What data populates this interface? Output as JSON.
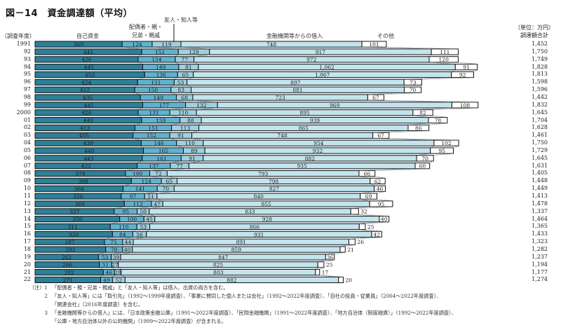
{
  "title": "図－14　資金調達額（平均）",
  "headers": {
    "year": "（調査年度）",
    "self": "自己資金",
    "family_line1": "配偶者・親・",
    "family_line2": "兄弟・親戚",
    "friends": "友人・知人等",
    "bank": "金融機関等からの借入",
    "other": "その他",
    "unit": "（単位：万円）",
    "total": "調達額合計"
  },
  "colors": {
    "self": "#2e7f98",
    "family": "#5fb2cf",
    "friends": "#9fd0e0",
    "bank": "#c2e4ee",
    "other": "#ffffff",
    "border": "#111111"
  },
  "chart_data": {
    "type": "bar",
    "orientation": "horizontal-stacked",
    "title": "図－14　資金調達額（平均）",
    "unit": "万円",
    "categories": [
      "1991",
      "92",
      "93",
      "94",
      "95",
      "96",
      "97",
      "98",
      "99",
      "2000",
      "01",
      "02",
      "03",
      "04",
      "05",
      "06",
      "07",
      "08",
      "09",
      "10",
      "11",
      "12",
      "13",
      "14",
      "15",
      "16",
      "17",
      "18",
      "19",
      "20",
      "21",
      "22"
    ],
    "series": [
      {
        "name": "自己資金",
        "values": [
          360,
          441,
          426,
          445,
          453,
          424,
          412,
          435,
          445,
          426,
          440,
          413,
          405,
          439,
          448,
          443,
          422,
          374,
          398,
          364,
          356,
          369,
          327,
          350,
          311,
          320,
          287,
          292,
          262,
          266,
          282,
          271
        ]
      },
      {
        "name": "配偶者・親・兄弟・親戚",
        "values": [
          124,
          151,
          154,
          149,
          136,
          151,
          150,
          149,
          177,
          131,
          159,
          151,
          152,
          146,
          165,
          161,
          137,
          100,
          124,
          141,
          97,
          112,
          95,
          100,
          110,
          84,
          75,
          70,
          53,
          51,
          46,
          49
        ]
      },
      {
        "name": "友人・知人等",
        "values": [
          119,
          129,
          77,
          81,
          65,
          53,
          83,
          68,
          132,
          110,
          88,
          113,
          91,
          110,
          89,
          91,
          77,
          72,
          65,
          70,
          51,
          47,
          50,
          45,
          53,
          56,
          44,
          40,
          39,
          27,
          28,
          52
        ]
      },
      {
        "name": "金融機関等からの借入",
        "values": [
          748,
          917,
          972,
          1062,
          1067,
          897,
          881,
          723,
          969,
          895,
          939,
          865,
          748,
          954,
          932,
          882,
          935,
          793,
          798,
          827,
          840,
          855,
          833,
          928,
          866,
          931,
          891,
          859,
          847,
          825,
          803,
          882
        ]
      },
      {
        "name": "その他",
        "values": [
          101,
          111,
          120,
          91,
          92,
          73,
          70,
          67,
          108,
          82,
          78,
          86,
          67,
          102,
          95,
          70,
          60,
          66,
          62,
          46,
          69,
          95,
          32,
          40,
          25,
          42,
          26,
          21,
          36,
          25,
          17,
          20
        ]
      }
    ],
    "totals": [
      "1,452",
      "1,750",
      "1,749",
      "1,828",
      "1,813",
      "1,598",
      "1,596",
      "1,442",
      "1,832",
      "1,645",
      "1,704",
      "1,628",
      "1,461",
      "1,750",
      "1,729",
      "1,645",
      "1,631",
      "1,405",
      "1,448",
      "1,449",
      "1,413",
      "1,478",
      "1,337",
      "1,464",
      "1,365",
      "1,433",
      "1,323",
      "1,282",
      "1,237",
      "1,194",
      "1,177",
      "1,274"
    ],
    "xlabel": "",
    "ylabel": "調査年度",
    "legend": "top (column headers)",
    "grid": false
  },
  "notes": [
    {
      "num": "（注）1",
      "text": "「配偶者・親・兄弟・親戚」と「友人・知人等」は借入、出資の両方を含む。"
    },
    {
      "num": "2",
      "text": "「友人・知人等」には「取引先」（1992～1999年度調査）、「事業に賛同した個人または会社」（1992～2022年度調査）、「自社の役員・従業員」（2004～2022年度調査）、"
    },
    {
      "num": "",
      "text": "「関連会社」（2016年度調査）を含む。"
    },
    {
      "num": "3",
      "text": "「金融機関等からの借入」には、「日本政策金融公庫」（1991～2022年度調査）、「民間金融機関」（1991～2022年度調査）、「地方自治体（制度融資）」（1992～2022年度調査）、"
    },
    {
      "num": "",
      "text": "「公庫・地方自治体以外の公的機関」（1999～2022年度調査）が含まれる。"
    }
  ]
}
